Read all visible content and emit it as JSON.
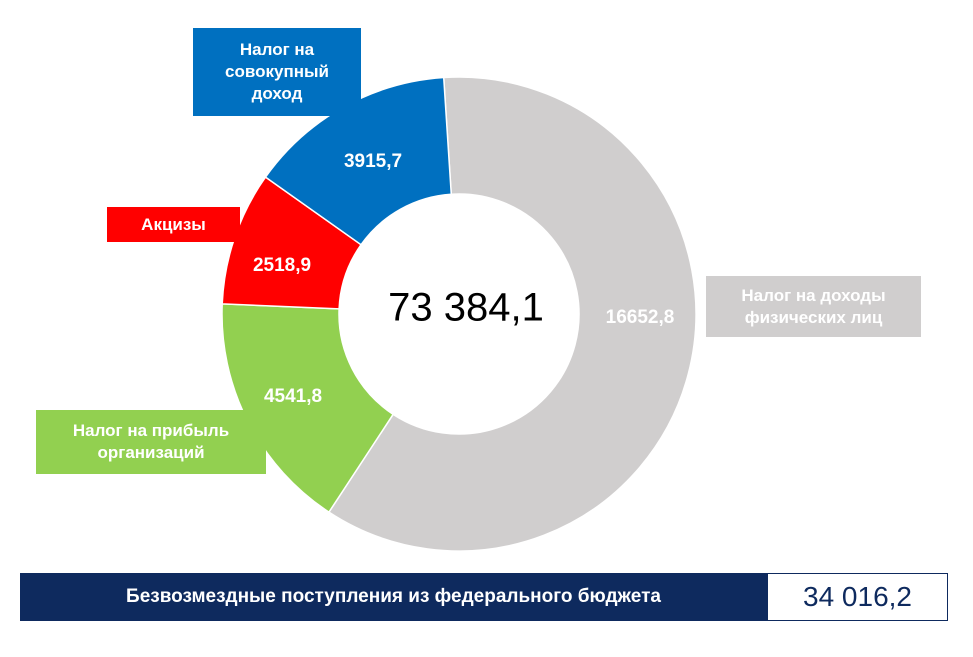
{
  "chart_data": {
    "type": "donut",
    "categories": [
      "Налог на доходы физических лиц",
      "Налог на прибыль организаций",
      "Акцизы",
      "Налог на совокупный доход"
    ],
    "values": [
      16652.8,
      4541.8,
      2518.9,
      3915.7
    ],
    "value_labels": [
      "16652,8",
      "4541,8",
      "2518,9",
      "3915,7"
    ],
    "colors": [
      "#d0cece",
      "#92d050",
      "#ff0000",
      "#0070c0"
    ],
    "center_label": "73 384,1"
  },
  "footer": {
    "label": "Безвозмездные поступления из федерального бюджета",
    "value": "34 016,2"
  }
}
